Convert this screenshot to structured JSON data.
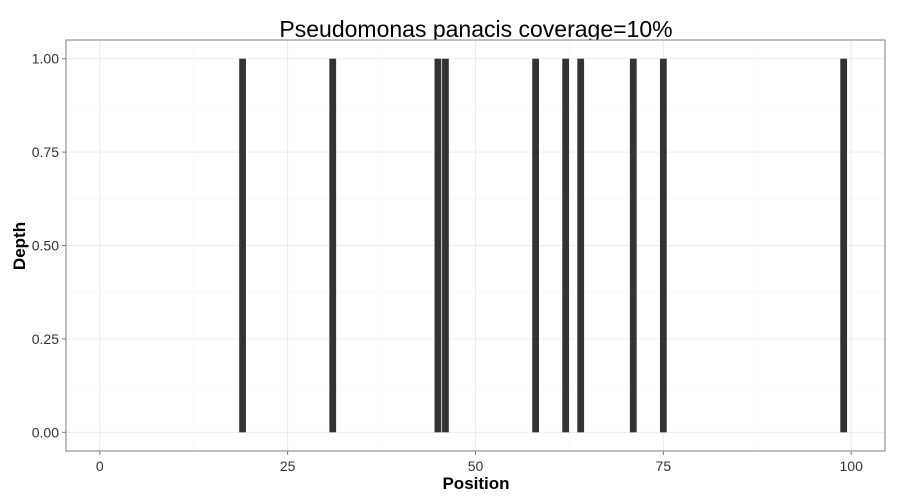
{
  "chart_data": {
    "type": "bar",
    "title": "Pseudomonas panacis coverage=10%",
    "xlabel": "Position",
    "ylabel": "Depth",
    "xlim": [
      -4.5,
      104.5
    ],
    "ylim": [
      -0.05,
      1.05
    ],
    "x_ticks": [
      0,
      25,
      50,
      75,
      100
    ],
    "y_ticks": [
      0.0,
      0.25,
      0.5,
      0.75,
      1.0
    ],
    "x_tick_labels": [
      "0",
      "25",
      "50",
      "75",
      "100"
    ],
    "y_tick_labels": [
      "0.00",
      "0.25",
      "0.50",
      "0.75",
      "1.00"
    ],
    "grid": true,
    "x": [
      19,
      31,
      45,
      46,
      58,
      62,
      64,
      71,
      75,
      99
    ],
    "values": [
      1,
      1,
      1,
      1,
      1,
      1,
      1,
      1,
      1,
      1
    ],
    "bar_color": "#333333",
    "panel_background": "#ffffff",
    "grid_color": "#ebebeb"
  }
}
